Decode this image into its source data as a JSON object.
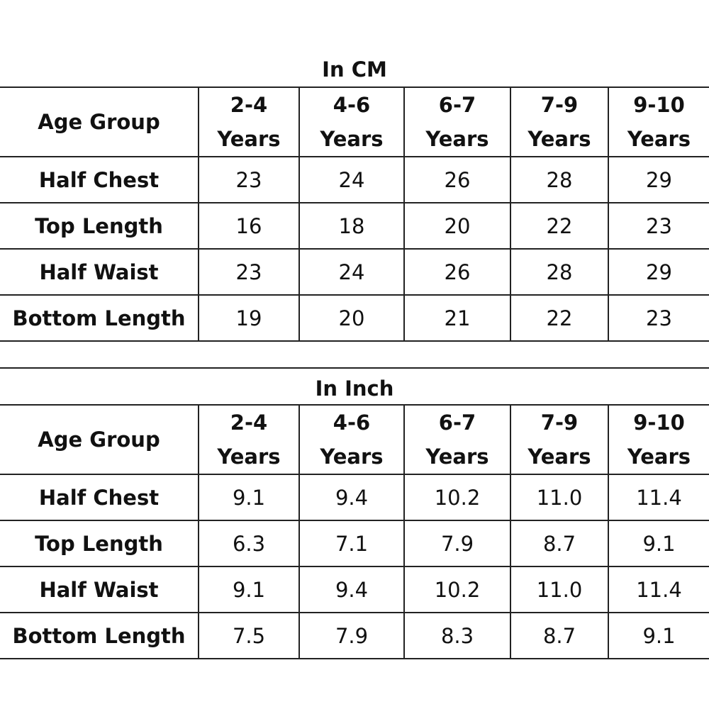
{
  "columns": [
    {
      "age": "2-4",
      "unit": "Years"
    },
    {
      "age": "4-6",
      "unit": "Years"
    },
    {
      "age": "6-7",
      "unit": "Years"
    },
    {
      "age": "7-9",
      "unit": "Years"
    },
    {
      "age": "9-10",
      "unit": "Years"
    }
  ],
  "cm": {
    "title": "In CM",
    "header": "Age Group",
    "rows": [
      {
        "label": "Half Chest",
        "values": [
          "23",
          "24",
          "26",
          "28",
          "29"
        ]
      },
      {
        "label": "Top Length",
        "values": [
          "16",
          "18",
          "20",
          "22",
          "23"
        ]
      },
      {
        "label": "Half Waist",
        "values": [
          "23",
          "24",
          "26",
          "28",
          "29"
        ]
      },
      {
        "label": "Bottom Length",
        "values": [
          "19",
          "20",
          "21",
          "22",
          "23"
        ]
      }
    ]
  },
  "inch": {
    "title": "In Inch",
    "header": "Age Group",
    "rows": [
      {
        "label": "Half Chest",
        "values": [
          "9.1",
          "9.4",
          "10.2",
          "11.0",
          "11.4"
        ]
      },
      {
        "label": "Top Length",
        "values": [
          "6.3",
          "7.1",
          "7.9",
          "8.7",
          "9.1"
        ]
      },
      {
        "label": "Half Waist",
        "values": [
          "9.1",
          "9.4",
          "10.2",
          "11.0",
          "11.4"
        ]
      },
      {
        "label": "Bottom Length",
        "values": [
          "7.5",
          "7.9",
          "8.3",
          "8.7",
          "9.1"
        ]
      }
    ]
  }
}
